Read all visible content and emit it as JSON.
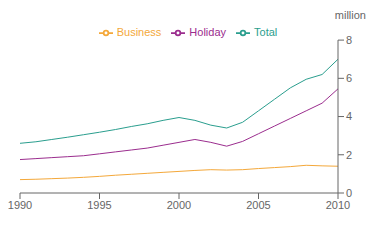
{
  "chart_data": {
    "type": "line",
    "ylabel": "million",
    "x": [
      1990,
      1991,
      1992,
      1993,
      1994,
      1995,
      1996,
      1997,
      1998,
      1999,
      2000,
      2001,
      2002,
      2003,
      2004,
      2005,
      2006,
      2007,
      2008,
      2009,
      2010
    ],
    "series": [
      {
        "name": "Holiday",
        "color": "#9B2D8E",
        "values": [
          1.75,
          1.8,
          1.85,
          1.9,
          1.95,
          2.05,
          2.15,
          2.25,
          2.35,
          2.5,
          2.65,
          2.8,
          2.65,
          2.45,
          2.7,
          3.1,
          3.5,
          3.9,
          4.3,
          4.7,
          5.45
        ]
      },
      {
        "name": "Business",
        "color": "#F4A83A",
        "values": [
          0.7,
          0.72,
          0.75,
          0.78,
          0.82,
          0.87,
          0.93,
          0.98,
          1.03,
          1.08,
          1.13,
          1.18,
          1.22,
          1.2,
          1.22,
          1.28,
          1.33,
          1.38,
          1.45,
          1.42,
          1.4
        ]
      },
      {
        "name": "Total",
        "color": "#2A9E8E",
        "values": [
          2.6,
          2.68,
          2.8,
          2.92,
          3.05,
          3.18,
          3.32,
          3.48,
          3.62,
          3.8,
          3.95,
          3.8,
          3.55,
          3.4,
          3.7,
          4.3,
          4.9,
          5.5,
          5.95,
          6.2,
          7.0
        ]
      }
    ],
    "xlim": [
      1990,
      2010
    ],
    "ylim": [
      0,
      8
    ],
    "xticks": [
      1990,
      1995,
      2000,
      2005,
      2010
    ],
    "yticks": [
      0,
      2,
      4,
      6,
      8
    ],
    "grid": false,
    "legend": "top"
  }
}
